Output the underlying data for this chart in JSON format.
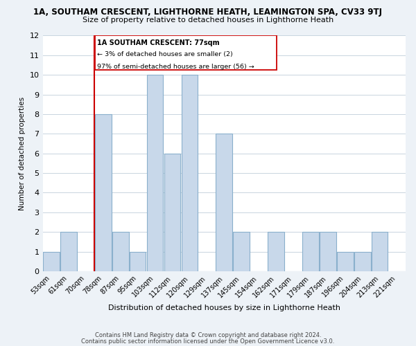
{
  "title_line1": "1A, SOUTHAM CRESCENT, LIGHTHORNE HEATH, LEAMINGTON SPA, CV33 9TJ",
  "title_line2": "Size of property relative to detached houses in Lighthorne Heath",
  "xlabel": "Distribution of detached houses by size in Lighthorne Heath",
  "ylabel": "Number of detached properties",
  "footer_line1": "Contains HM Land Registry data © Crown copyright and database right 2024.",
  "footer_line2": "Contains public sector information licensed under the Open Government Licence v3.0.",
  "bin_labels": [
    "53sqm",
    "61sqm",
    "70sqm",
    "78sqm",
    "87sqm",
    "95sqm",
    "103sqm",
    "112sqm",
    "120sqm",
    "129sqm",
    "137sqm",
    "145sqm",
    "154sqm",
    "162sqm",
    "171sqm",
    "179sqm",
    "187sqm",
    "196sqm",
    "204sqm",
    "213sqm",
    "221sqm"
  ],
  "bar_heights": [
    1,
    2,
    0,
    8,
    2,
    1,
    10,
    6,
    10,
    0,
    7,
    2,
    0,
    2,
    0,
    2,
    2,
    1,
    1,
    2,
    0
  ],
  "bar_color": "#c8d8ea",
  "bar_edge_color": "#8ab0cc",
  "annotation_line1": "1A SOUTHAM CRESCENT: 77sqm",
  "annotation_line2": "← 3% of detached houses are smaller (2)",
  "annotation_line3": "97% of semi-detached houses are larger (56) →",
  "vertical_line_index": 3,
  "vertical_line_color": "#cc0000",
  "ylim": [
    0,
    12
  ],
  "yticks": [
    0,
    1,
    2,
    3,
    4,
    5,
    6,
    7,
    8,
    9,
    10,
    11,
    12
  ],
  "background_color": "#edf2f7",
  "plot_background": "#ffffff",
  "grid_color": "#c8d4de"
}
